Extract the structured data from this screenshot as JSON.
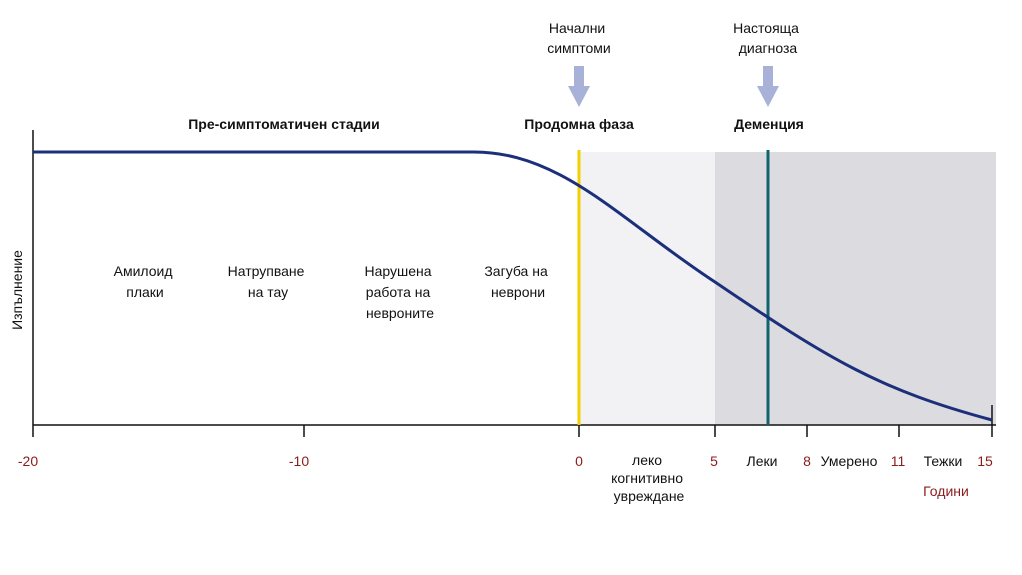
{
  "diagram": {
    "ylabel": "Изпълнение",
    "xunit_label": "Години",
    "x_range": [
      -20,
      15
    ],
    "phases": [
      {
        "key": "presymptomatic",
        "label": "Пре-симптоматичен стадии"
      },
      {
        "key": "prodromal",
        "label": "Продомна фаза"
      },
      {
        "key": "dementia",
        "label": "Деменция"
      }
    ],
    "markers": [
      {
        "key": "initial",
        "lines": [
          "Начални",
          "симптоми"
        ],
        "year": 0,
        "line_color": "#f2cf00"
      },
      {
        "key": "current",
        "lines": [
          "Настояща",
          "диагноза"
        ],
        "year": 7,
        "line_color": "#0f6470"
      }
    ],
    "stages": [
      {
        "key": "amyloid",
        "lines": [
          "Амилоид",
          "плаки"
        ]
      },
      {
        "key": "tau",
        "lines": [
          "Натрупване",
          "на тау"
        ]
      },
      {
        "key": "neuron-dysfunction",
        "lines": [
          "Нарушена",
          "работа на",
          "невроните"
        ]
      },
      {
        "key": "neuron-loss",
        "lines": [
          "Загуба на",
          "неврони"
        ]
      }
    ],
    "ticks": [
      {
        "value": -20,
        "label": "-20"
      },
      {
        "value": -10,
        "label": "-10"
      },
      {
        "value": 0,
        "label": "0"
      },
      {
        "value": 5,
        "label": "5"
      },
      {
        "value": 8,
        "label": "8"
      },
      {
        "value": 11,
        "label": "11"
      },
      {
        "value": 15,
        "label": "15"
      }
    ],
    "severity": [
      {
        "key": "mild-ci",
        "lines": [
          "леко",
          "когнитивно",
          "увреждане"
        ]
      },
      {
        "key": "mild",
        "lines": [
          "Леки"
        ]
      },
      {
        "key": "moderate",
        "lines": [
          "Умерено"
        ]
      },
      {
        "key": "severe",
        "lines": [
          "Тежки"
        ]
      }
    ],
    "shaded_regions": [
      {
        "from": 0,
        "to": 5,
        "color": "#f2f2f4"
      },
      {
        "from": 5,
        "to": 15,
        "color": "#dcdce0"
      }
    ],
    "colors": {
      "curve": "#1c2f7a",
      "axis": "#111111",
      "arrow": "#a8b2d8",
      "tick_label": "#8a1c1c"
    }
  }
}
